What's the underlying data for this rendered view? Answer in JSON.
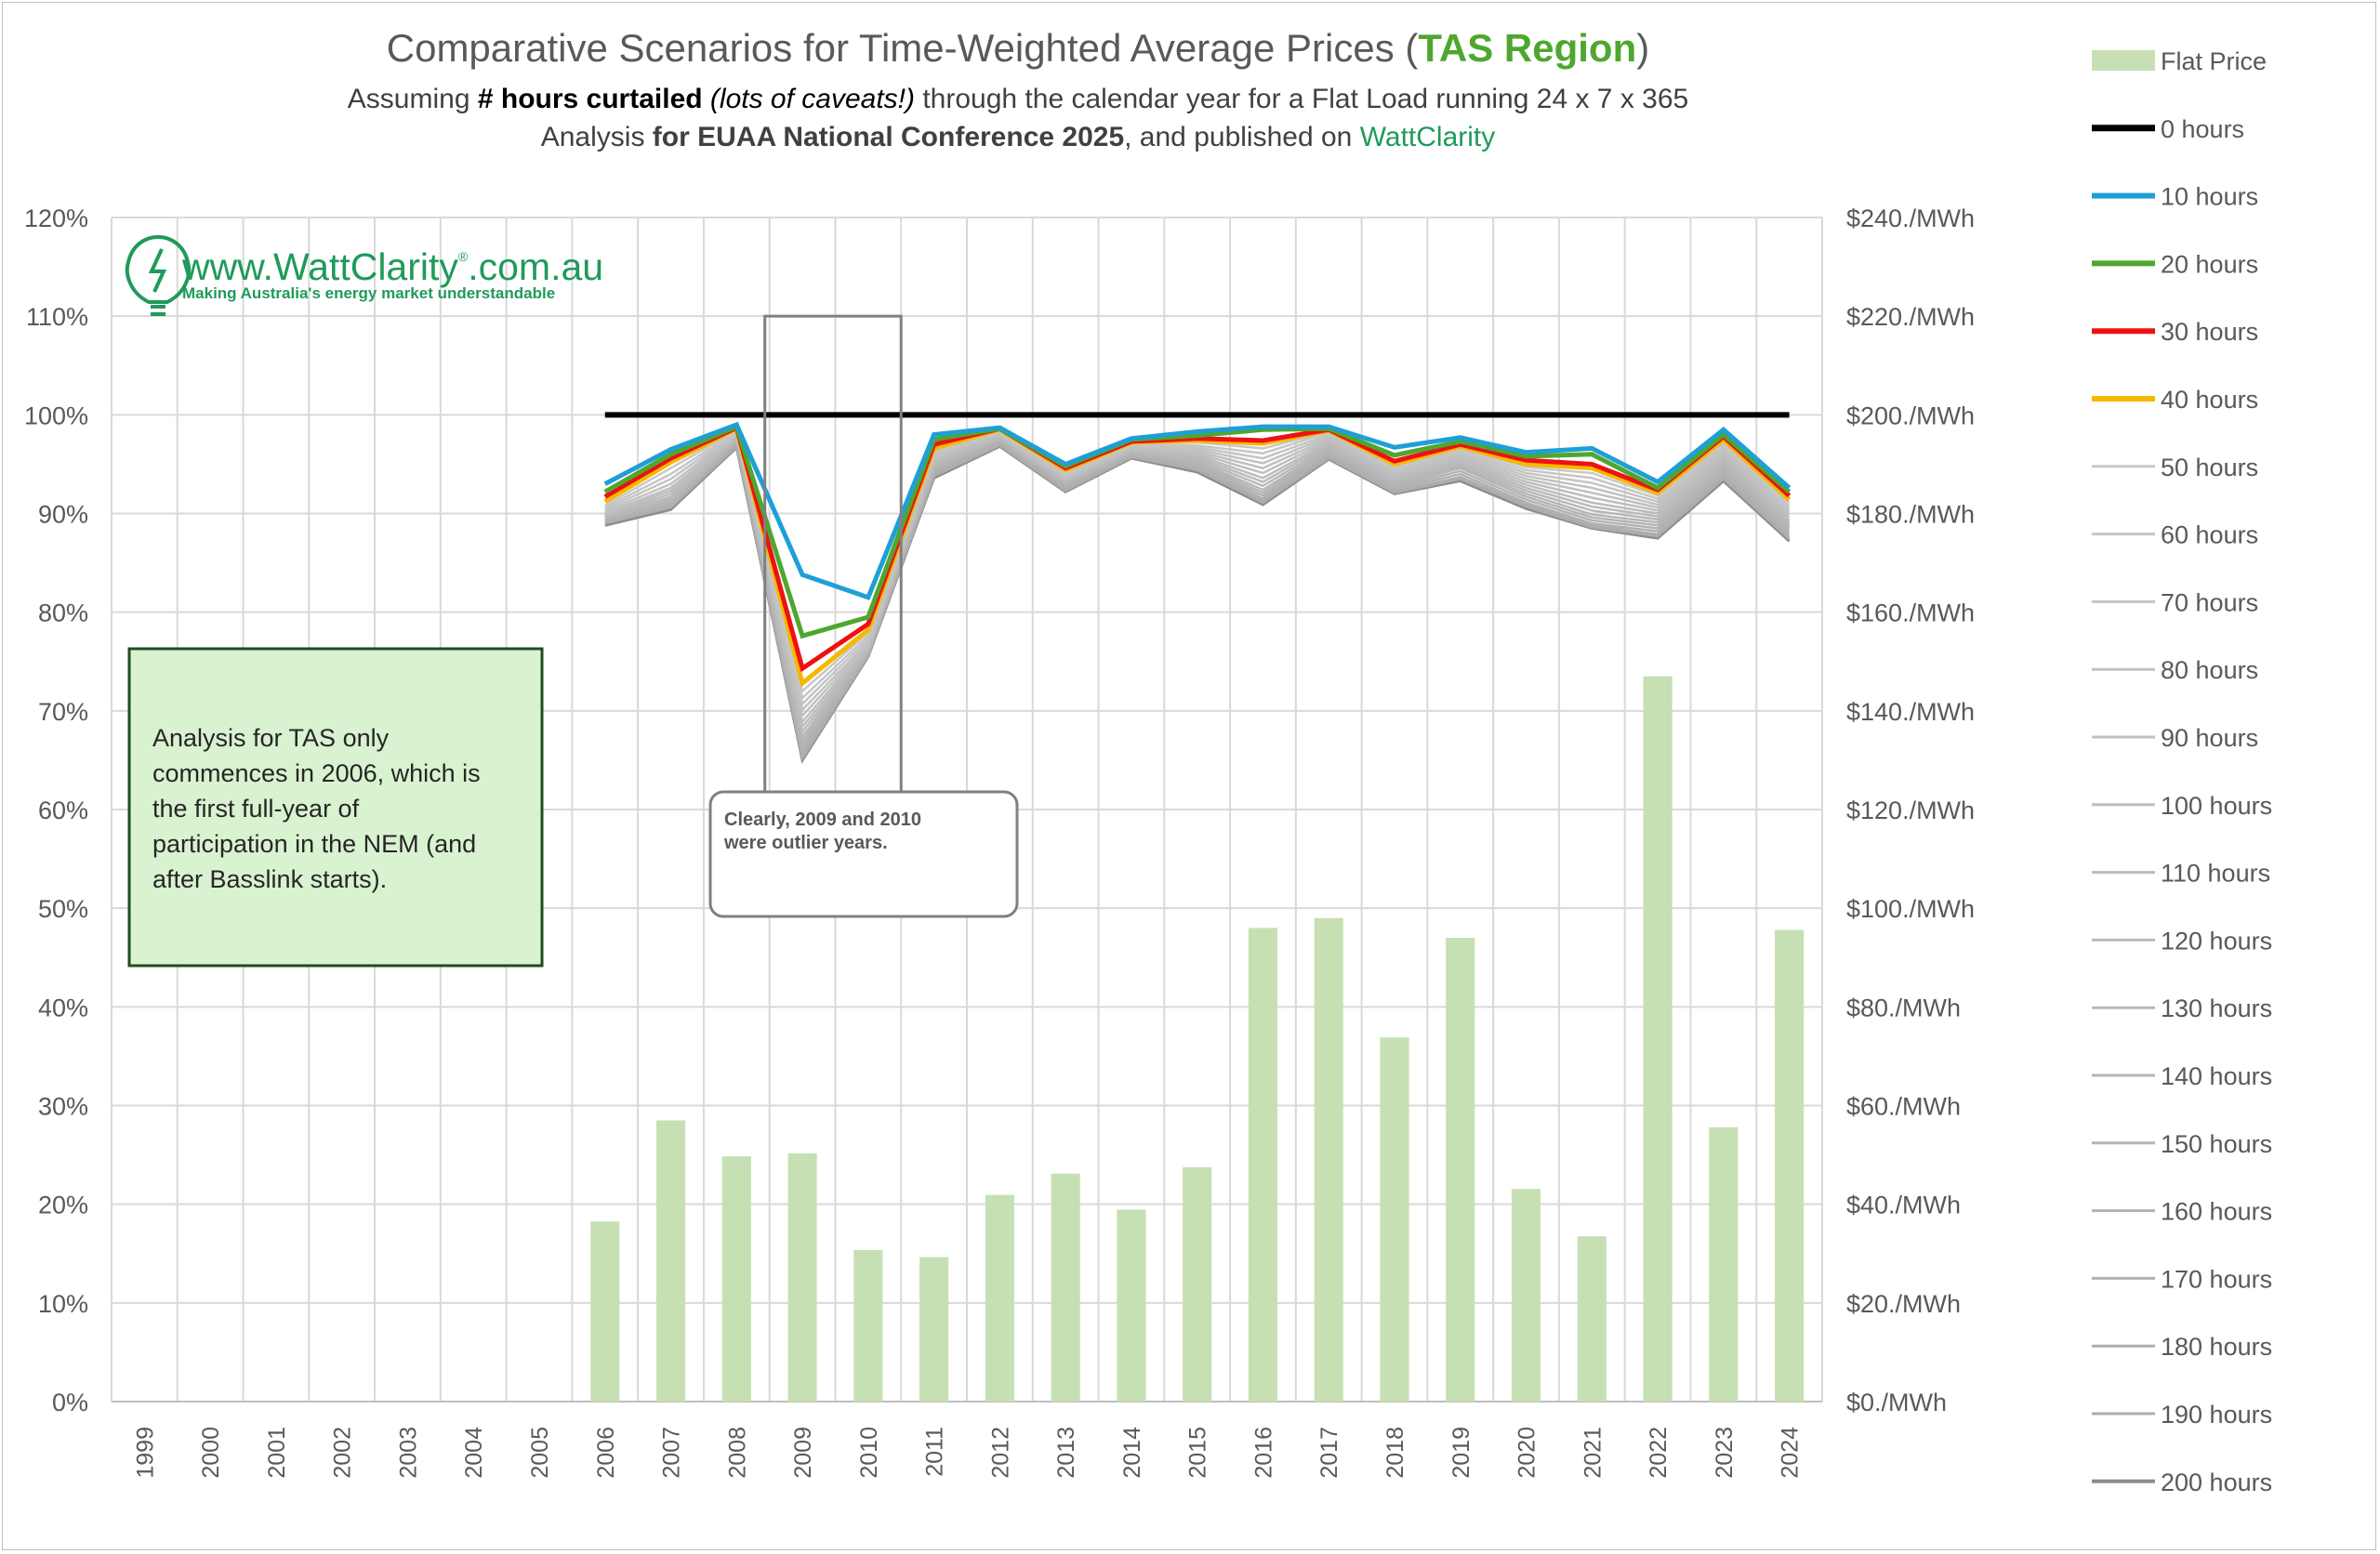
{
  "title": {
    "part1": "Comparative Scenarios for Time-Weighted Average Prices (",
    "region": "TAS Region",
    "part2": ")",
    "region_color": "#4ea72e"
  },
  "subtitle1": {
    "a": "Assuming ",
    "b": "# hours curtailed",
    "c": " ",
    "d": "(lots of caveats!)",
    "e": " through the calendar year for a Flat Load running 24 x 7 x 365"
  },
  "subtitle2": {
    "a": "Analysis ",
    "b": "for EUAA National Conference 2025",
    "c": ", and published on ",
    "d": "WattClarity",
    "link_color": "#1f9a5a"
  },
  "logo": {
    "main": "www.WattClarity",
    "reg": "®",
    "domain": ".com.au",
    "tagline": "Making Australia's energy market understandable",
    "color": "#1f9a5a"
  },
  "note_box": {
    "lines": [
      "Analysis for TAS only",
      "commences in 2006, which is",
      "the first full-year of",
      "participation in the NEM (and",
      "after Basslink starts)."
    ]
  },
  "callout": {
    "lines": [
      "Clearly, 2009 and 2010",
      "were outlier years."
    ]
  },
  "chart_data": {
    "type": "bar+line",
    "categories": [
      "1999",
      "2000",
      "2001",
      "2002",
      "2003",
      "2004",
      "2005",
      "2006",
      "2007",
      "2008",
      "2009",
      "2010",
      "2011",
      "2012",
      "2013",
      "2014",
      "2015",
      "2016",
      "2017",
      "2018",
      "2019",
      "2020",
      "2021",
      "2022",
      "2023",
      "2024"
    ],
    "left_axis": {
      "ylim": [
        0,
        120
      ],
      "ticks": [
        "0%",
        "10%",
        "20%",
        "30%",
        "40%",
        "50%",
        "60%",
        "70%",
        "80%",
        "90%",
        "100%",
        "110%",
        "120%"
      ]
    },
    "right_axis": {
      "ylim": [
        0,
        240
      ],
      "ticks": [
        "$0./MWh",
        "$20./MWh",
        "$40./MWh",
        "$60./MWh",
        "$80./MWh",
        "$100./MWh",
        "$120./MWh",
        "$140./MWh",
        "$160./MWh",
        "$180./MWh",
        "$200./MWh",
        "$220./MWh",
        "$240./MWh"
      ]
    },
    "grid": true,
    "bars": {
      "name": "Flat Price",
      "axis": "right",
      "color": "#c6e0b4",
      "values": [
        null,
        null,
        null,
        null,
        null,
        null,
        null,
        36.5,
        57,
        49.7,
        50.3,
        30.7,
        29.3,
        41.9,
        46.2,
        38.9,
        47.5,
        96,
        98,
        73.8,
        94,
        43.1,
        33.5,
        147,
        55.6,
        95.6
      ]
    },
    "series": [
      {
        "name": "0 hours",
        "color": "#000000",
        "values": [
          null,
          null,
          null,
          null,
          null,
          null,
          null,
          100,
          100,
          100,
          100,
          100,
          100,
          100,
          100,
          100,
          100,
          100,
          100,
          100,
          100,
          100,
          100,
          100,
          100,
          100
        ]
      },
      {
        "name": "10 hours",
        "color": "#1f9fd6",
        "values": [
          null,
          null,
          null,
          null,
          null,
          null,
          null,
          93,
          96.5,
          99,
          83.8,
          81.5,
          98,
          98.7,
          95,
          97.6,
          98.3,
          98.8,
          98.8,
          96.7,
          97.7,
          96.2,
          96.6,
          93.2,
          98.5,
          92.6
        ]
      },
      {
        "name": "20 hours",
        "color": "#4ea72e",
        "values": [
          null,
          null,
          null,
          null,
          null,
          null,
          null,
          92.2,
          96,
          98.8,
          77.6,
          79.5,
          97.5,
          98.6,
          94.8,
          97.5,
          97.9,
          98.5,
          98.6,
          95.9,
          97.3,
          95.8,
          96,
          92.6,
          98,
          92.2
        ]
      },
      {
        "name": "30 hours",
        "color": "#ee1111",
        "values": [
          null,
          null,
          null,
          null,
          null,
          null,
          null,
          91.7,
          95.6,
          98.7,
          74.3,
          78.8,
          97,
          98.6,
          94.6,
          97.3,
          97.6,
          97.4,
          98.5,
          95.3,
          97,
          95.4,
          95,
          92.4,
          97.8,
          91.8
        ]
      },
      {
        "name": "40 hours",
        "color": "#f4b900",
        "values": [
          null,
          null,
          null,
          null,
          null,
          null,
          null,
          91.2,
          95.2,
          98.6,
          72.8,
          78.2,
          96.6,
          98.5,
          94.4,
          97.2,
          97.4,
          97.1,
          98.4,
          95,
          96.8,
          95,
          94.6,
          92.1,
          97.5,
          91.4
        ]
      },
      {
        "name": "50 hours",
        "color": "#c8c8c8",
        "values": [
          null,
          null,
          null,
          null,
          null,
          null,
          null,
          90.8,
          94.6,
          98.4,
          72,
          77.9,
          96.4,
          98.4,
          94.2,
          97.1,
          97.2,
          96.6,
          98.3,
          94.8,
          96.6,
          94.7,
          94.1,
          91.8,
          97.3,
          91.1
        ]
      },
      {
        "name": "60 hours",
        "color": "#c6c6c6",
        "values": [
          null,
          null,
          null,
          null,
          null,
          null,
          null,
          90.6,
          94,
          98.3,
          71.3,
          77.6,
          96.2,
          98.3,
          94.1,
          97,
          96.9,
          96.1,
          98.2,
          94.6,
          96.4,
          94.4,
          93.6,
          91.5,
          97.1,
          90.8
        ]
      },
      {
        "name": "70 hours",
        "color": "#c4c4c4",
        "values": [
          null,
          null,
          null,
          null,
          null,
          null,
          null,
          90.4,
          93.5,
          98.2,
          70.7,
          77.3,
          96,
          98.2,
          93.9,
          96.9,
          96.7,
          95.6,
          98,
          94.4,
          96.2,
          94.1,
          93.1,
          91.2,
          96.9,
          90.5
        ]
      },
      {
        "name": "80 hours",
        "color": "#c2c2c2",
        "values": [
          null,
          null,
          null,
          null,
          null,
          null,
          null,
          90.2,
          93,
          98.1,
          70.1,
          77,
          95.8,
          98.1,
          93.8,
          96.8,
          96.5,
          95.1,
          97.8,
          94.2,
          96,
          93.8,
          92.6,
          90.9,
          96.7,
          90.2
        ]
      },
      {
        "name": "90 hours",
        "color": "#c0c0c0",
        "values": [
          null,
          null,
          null,
          null,
          null,
          null,
          null,
          90,
          92.6,
          98,
          69.5,
          76.8,
          95.6,
          98,
          93.6,
          96.7,
          96.3,
          94.6,
          97.6,
          94,
          95.8,
          93.5,
          92.1,
          90.6,
          96.4,
          89.9
        ]
      },
      {
        "name": "100 hours",
        "color": "#bebebe",
        "values": [
          null,
          null,
          null,
          null,
          null,
          null,
          null,
          89.9,
          92.3,
          97.9,
          68.9,
          76.6,
          95.4,
          97.9,
          93.5,
          96.6,
          96.1,
          94.1,
          97.4,
          93.8,
          95.6,
          93.2,
          91.6,
          90.3,
          96.1,
          89.6
        ]
      },
      {
        "name": "110 hours",
        "color": "#bcbcbc",
        "values": [
          null,
          null,
          null,
          null,
          null,
          null,
          null,
          89.8,
          92,
          97.8,
          68.4,
          76.4,
          95.2,
          97.8,
          93.4,
          96.5,
          95.9,
          93.6,
          97.2,
          93.6,
          95.4,
          92.9,
          91.1,
          90,
          95.8,
          89.3
        ]
      },
      {
        "name": "120 hours",
        "color": "#bababa",
        "values": [
          null,
          null,
          null,
          null,
          null,
          null,
          null,
          89.7,
          91.7,
          97.7,
          67.9,
          76.3,
          95,
          97.7,
          93.3,
          96.4,
          95.7,
          93.2,
          97,
          93.4,
          95.2,
          92.6,
          90.7,
          89.7,
          95.5,
          89.1
        ]
      },
      {
        "name": "130 hours",
        "color": "#b8b8b8",
        "values": [
          null,
          null,
          null,
          null,
          null,
          null,
          null,
          89.6,
          91.5,
          97.6,
          67.4,
          76.2,
          94.9,
          97.6,
          93.2,
          96.3,
          95.5,
          92.8,
          96.8,
          93.2,
          95,
          92.3,
          90.3,
          89.4,
          95.2,
          88.9
        ]
      },
      {
        "name": "140 hours",
        "color": "#b6b6b6",
        "values": [
          null,
          null,
          null,
          null,
          null,
          null,
          null,
          89.5,
          91.3,
          97.5,
          67,
          76.1,
          94.8,
          97.5,
          93.1,
          96.2,
          95.3,
          92.4,
          96.6,
          93,
          94.8,
          92,
          89.9,
          89.1,
          94.9,
          88.7
        ]
      },
      {
        "name": "150 hours",
        "color": "#b4b4b4",
        "values": [
          null,
          null,
          null,
          null,
          null,
          null,
          null,
          89.4,
          91.1,
          97.4,
          66.6,
          76,
          94.6,
          97.4,
          93,
          96.1,
          95.1,
          92.1,
          96.4,
          92.8,
          94.6,
          91.7,
          89.6,
          88.8,
          94.6,
          88.5
        ]
      },
      {
        "name": "160 hours",
        "color": "#b2b2b2",
        "values": [
          null,
          null,
          null,
          null,
          null,
          null,
          null,
          89.3,
          90.9,
          97.3,
          66.2,
          75.9,
          94.4,
          97.3,
          92.9,
          96,
          94.9,
          91.8,
          96.2,
          92.6,
          94.3,
          91.4,
          89.3,
          88.5,
          94.3,
          88.2
        ]
      },
      {
        "name": "170 hours",
        "color": "#b0b0b0",
        "values": [
          null,
          null,
          null,
          null,
          null,
          null,
          null,
          89.2,
          90.8,
          97.2,
          65.8,
          75.8,
          94.2,
          97.2,
          92.7,
          95.9,
          94.7,
          91.5,
          96,
          92.4,
          94,
          91.1,
          89,
          88.2,
          94,
          87.9
        ]
      },
      {
        "name": "180 hours",
        "color": "#aeaeae",
        "values": [
          null,
          null,
          null,
          null,
          null,
          null,
          null,
          89.1,
          90.7,
          97,
          65.5,
          75.7,
          94,
          97,
          92.5,
          95.8,
          94.6,
          91.3,
          95.8,
          92.2,
          93.7,
          90.9,
          88.8,
          87.9,
          93.7,
          87.6
        ]
      },
      {
        "name": "190 hours",
        "color": "#acacac",
        "values": [
          null,
          null,
          null,
          null,
          null,
          null,
          null,
          89,
          90.6,
          96.8,
          65.2,
          75.6,
          93.8,
          96.9,
          92.3,
          95.7,
          94.4,
          91.1,
          95.6,
          92.1,
          93.5,
          90.7,
          88.6,
          87.7,
          93.5,
          87.4
        ]
      },
      {
        "name": "200 hours",
        "color": "#8c8c8c",
        "values": [
          null,
          null,
          null,
          null,
          null,
          null,
          null,
          88.8,
          90.4,
          96.7,
          65,
          75.5,
          93.6,
          96.8,
          92.2,
          95.6,
          94.2,
          90.9,
          95.5,
          92,
          93.3,
          90.5,
          88.5,
          87.5,
          93.3,
          87.2
        ]
      }
    ],
    "legend_position": "right"
  }
}
